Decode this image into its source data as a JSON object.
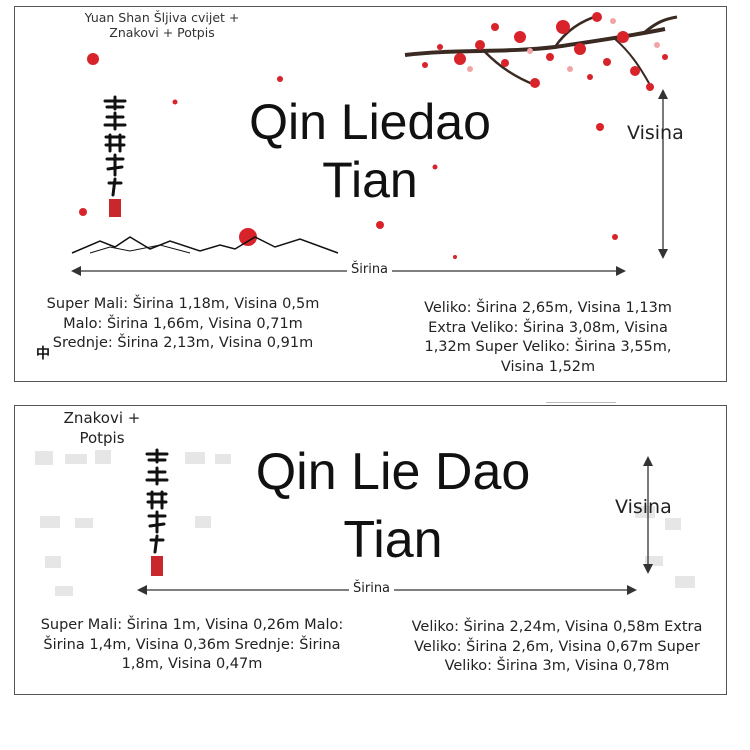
{
  "panel_top": {
    "variant_label": "Yuan Shan Šljiva cvijet + Znakovi + Potpis",
    "title_line1": "Qin Liedao",
    "title_line2": "Tian",
    "height_label": "Visina",
    "width_label": "Širina",
    "sizes_left": "Super Mali: Širina 1,18m, Visina 0,5m Malo: Širina 1,66m, Visina 0,71m Srednje: Širina 2,13m, Visina 0,91m",
    "sizes_right": "Veliko: Širina 2,65m, Visina 1,13m Extra Veliko: Širina 3,08m, Visina 1,32m Super Veliko: Širina 3,55m, Visina 1,52m",
    "corner_glyph": "中"
  },
  "panel_bottom": {
    "variant_label": "Znakovi + Potpis",
    "title_line1": "Qin Lie Dao",
    "title_line2": "Tian",
    "height_label": "Visina",
    "width_label": "Širina",
    "sizes_left": "Super Mali: Širina 1m, Visina 0,26m Malo: Širina 1,4m, Visina 0,36m Srednje: Širina 1,8m, Visina 0,47m",
    "sizes_right": "Veliko: Širina 2,24m, Visina 0,58m Extra Veliko: Širina 2,6m, Visina 0,67m Super Veliko: Širina 3m, Visina 0,78m"
  },
  "colors": {
    "blossom": "#d8232a",
    "branch": "#3a2a22",
    "ink": "#111111",
    "seal": "#c8282b",
    "border": "#555555"
  }
}
